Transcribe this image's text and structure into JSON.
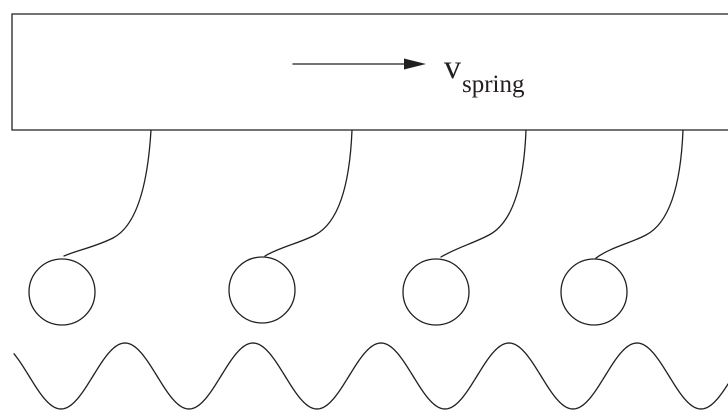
{
  "diagram": {
    "velocity_symbol": "v",
    "velocity_subscript": "spring",
    "spring_count": 4,
    "substrate_shape": "sinusoidal",
    "stroke_color": "#231f20",
    "background_color": "#ffffff"
  }
}
